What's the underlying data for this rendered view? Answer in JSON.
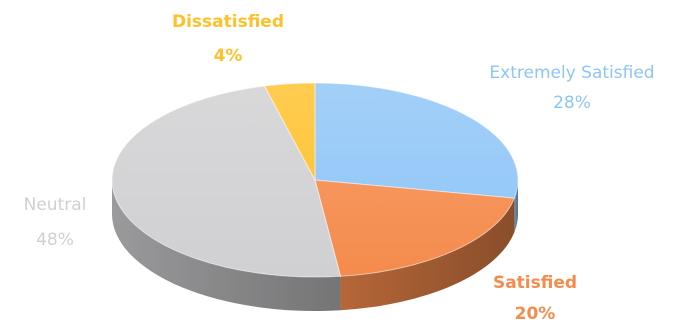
{
  "chart_data": {
    "type": "pie",
    "categories": [
      "Extremely Satisfied",
      "Satisfied",
      "Neutral",
      "Dissatisfied"
    ],
    "values": [
      28,
      20,
      48,
      4
    ],
    "value_labels": [
      "28%",
      "20%",
      "48%",
      "4%"
    ],
    "colors": [
      "#8ec5f7",
      "#f58b4c",
      "#d0d0d2",
      "#ffc12a"
    ],
    "title": "",
    "legend": "none",
    "style": "3d-tilted"
  }
}
